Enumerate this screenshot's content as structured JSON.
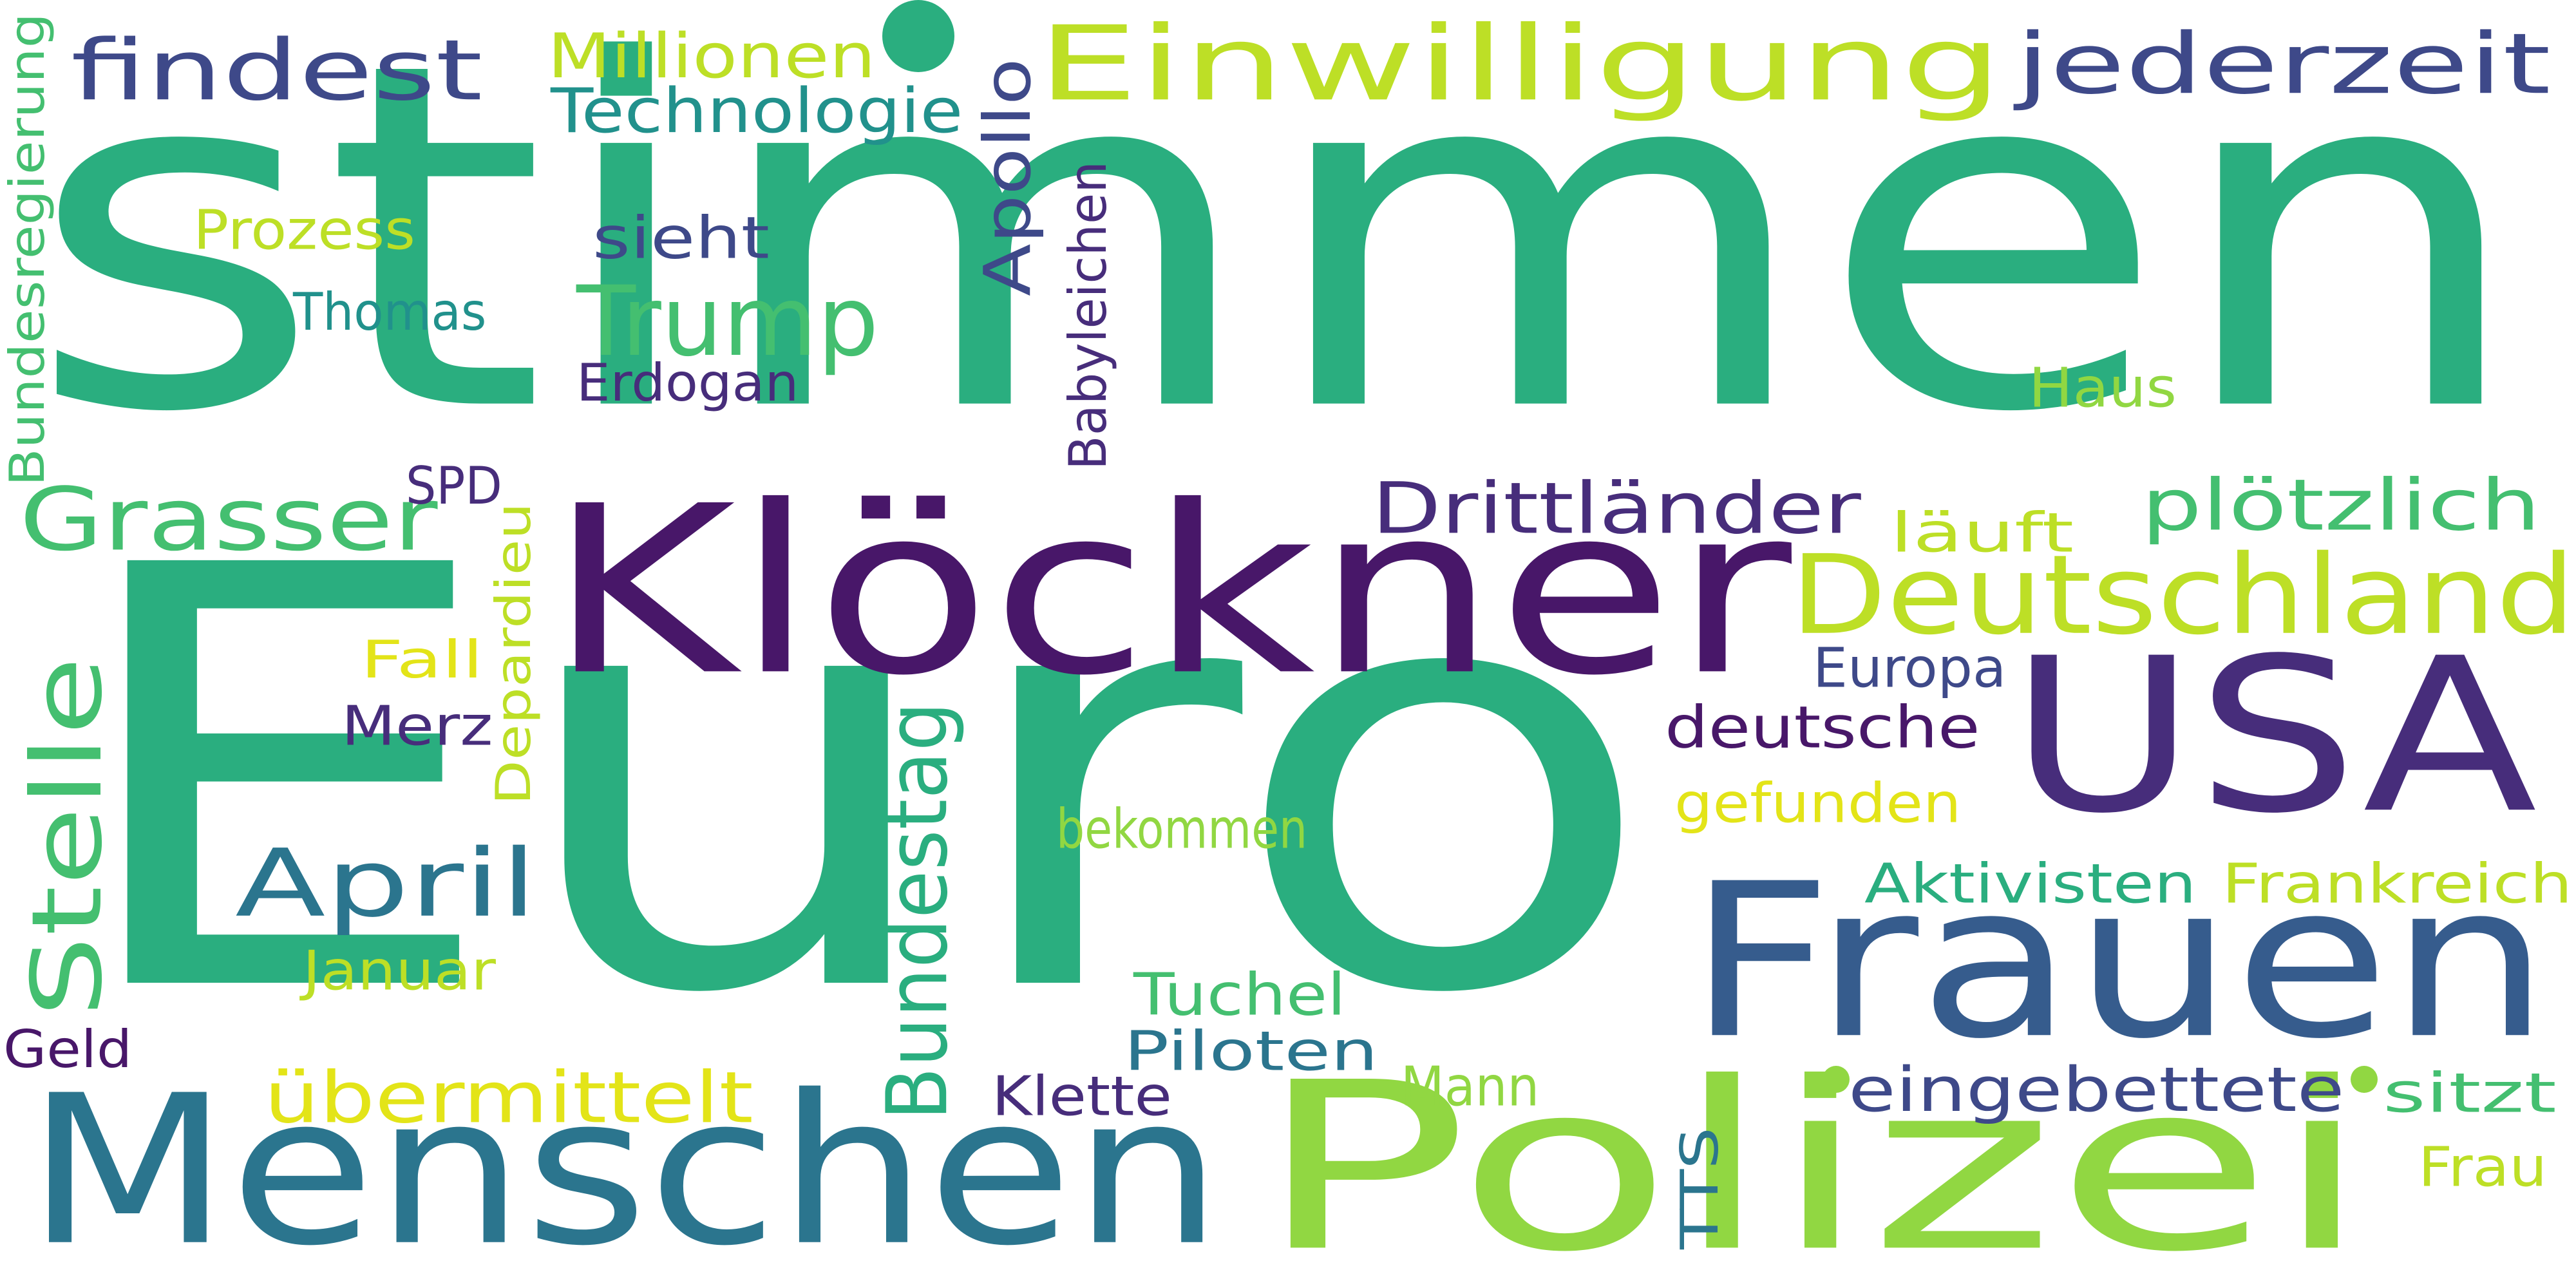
{
  "palette": {
    "teal_green": "#2aae7f",
    "light_green": "#44bf70",
    "lime": "#91d742",
    "yellow_green": "#bddf26",
    "yellow": "#e3e418",
    "teal": "#21918c",
    "blue_teal": "#2b758e",
    "blue": "#365c8d",
    "indigo": "#3e4989",
    "purple": "#472d7b",
    "deep_purple": "#481769"
  },
  "words": [
    {
      "text": "stimmen",
      "color": "#2aae7f",
      "vertical": false
    },
    {
      "text": "Euro",
      "color": "#2aae7f",
      "vertical": false
    },
    {
      "text": "Klöckner",
      "color": "#481769",
      "vertical": false
    },
    {
      "text": "Polizei",
      "color": "#91d742",
      "vertical": false
    },
    {
      "text": "Menschen",
      "color": "#2b758e",
      "vertical": false
    },
    {
      "text": "Frauen",
      "color": "#365c8d",
      "vertical": false
    },
    {
      "text": "USA",
      "color": "#472d7b",
      "vertical": false
    },
    {
      "text": "Einwilligung",
      "color": "#bddf26",
      "vertical": false
    },
    {
      "text": "Deutschland",
      "color": "#bddf26",
      "vertical": false
    },
    {
      "text": "findest",
      "color": "#3e4989",
      "vertical": false
    },
    {
      "text": "jederzeit",
      "color": "#3e4989",
      "vertical": false
    },
    {
      "text": "Grasser",
      "color": "#44bf70",
      "vertical": false
    },
    {
      "text": "April",
      "color": "#2b758e",
      "vertical": false
    },
    {
      "text": "Stelle",
      "color": "#44bf70",
      "vertical": true
    },
    {
      "text": "Trump",
      "color": "#44bf70",
      "vertical": false
    },
    {
      "text": "Drittländer",
      "color": "#472d7b",
      "vertical": false
    },
    {
      "text": "plötzlich",
      "color": "#44bf70",
      "vertical": false
    },
    {
      "text": "Bundestag",
      "color": "#2aae7f",
      "vertical": true
    },
    {
      "text": "übermittelt",
      "color": "#e3e418",
      "vertical": false
    },
    {
      "text": "eingebettete",
      "color": "#3e4989",
      "vertical": false
    },
    {
      "text": "Millionen",
      "color": "#bddf26",
      "vertical": false
    },
    {
      "text": "Technologie",
      "color": "#21918c",
      "vertical": false
    },
    {
      "text": "Apollo",
      "color": "#3e4989",
      "vertical": true
    },
    {
      "text": "Babyleichen",
      "color": "#472d7b",
      "vertical": true
    },
    {
      "text": "Bundesregierung",
      "color": "#44bf70",
      "vertical": true
    },
    {
      "text": "Prozess",
      "color": "#bddf26",
      "vertical": false
    },
    {
      "text": "sieht",
      "color": "#3e4989",
      "vertical": false
    },
    {
      "text": "Thomas",
      "color": "#21918c",
      "vertical": false
    },
    {
      "text": "Erdogan",
      "color": "#472d7b",
      "vertical": false
    },
    {
      "text": "Haus",
      "color": "#91d742",
      "vertical": false
    },
    {
      "text": "SPD",
      "color": "#472d7b",
      "vertical": false
    },
    {
      "text": "läuft",
      "color": "#bddf26",
      "vertical": false
    },
    {
      "text": "Depardieu",
      "color": "#bddf26",
      "vertical": true
    },
    {
      "text": "Fall",
      "color": "#e3e418",
      "vertical": false
    },
    {
      "text": "Europa",
      "color": "#3e4989",
      "vertical": false
    },
    {
      "text": "Merz",
      "color": "#472d7b",
      "vertical": false
    },
    {
      "text": "deutsche",
      "color": "#481769",
      "vertical": false
    },
    {
      "text": "gefunden",
      "color": "#e3e418",
      "vertical": false
    },
    {
      "text": "bekommen",
      "color": "#91d742",
      "vertical": false
    },
    {
      "text": "Aktivisten",
      "color": "#2aae7f",
      "vertical": false
    },
    {
      "text": "Frankreich",
      "color": "#bddf26",
      "vertical": false
    },
    {
      "text": "Januar",
      "color": "#bddf26",
      "vertical": false
    },
    {
      "text": "Tuchel",
      "color": "#44bf70",
      "vertical": false
    },
    {
      "text": "Piloten",
      "color": "#2b758e",
      "vertical": false
    },
    {
      "text": "Geld",
      "color": "#481769",
      "vertical": false
    },
    {
      "text": "Klette",
      "color": "#472d7b",
      "vertical": false
    },
    {
      "text": "Mann",
      "color": "#91d742",
      "vertical": false
    },
    {
      "text": "sitzt",
      "color": "#44bf70",
      "vertical": false
    },
    {
      "text": "TTS",
      "color": "#2b758e",
      "vertical": true
    },
    {
      "text": "Frau",
      "color": "#bddf26",
      "vertical": false
    }
  ],
  "dots": [
    {
      "color": "#2aae7f"
    },
    {
      "color": "#91d742"
    },
    {
      "color": "#91d742"
    }
  ]
}
